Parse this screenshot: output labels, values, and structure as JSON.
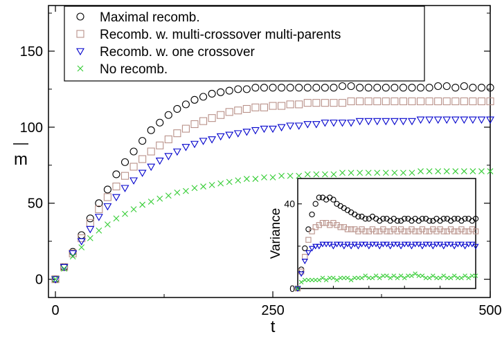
{
  "chart_data": [
    {
      "type": "scatter",
      "xlabel": "t",
      "ylabel": "m",
      "ylabel_overline": true,
      "xlim": [
        -8,
        500
      ],
      "ylim": [
        -12,
        180
      ],
      "x_ticks": [
        0,
        250,
        500
      ],
      "y_ticks": [
        0,
        50,
        100,
        150
      ],
      "grid": false,
      "legend_position": "top-left",
      "series": [
        {
          "name": "Maximal recomb.",
          "marker": "circle",
          "color": "#000000",
          "x": [
            0,
            10,
            20,
            30,
            40,
            50,
            60,
            70,
            80,
            90,
            100,
            110,
            120,
            130,
            140,
            150,
            160,
            170,
            180,
            190,
            200,
            210,
            220,
            230,
            240,
            250,
            260,
            270,
            280,
            290,
            300,
            310,
            320,
            330,
            340,
            350,
            360,
            370,
            380,
            390,
            400,
            410,
            420,
            430,
            440,
            450,
            460,
            470,
            480,
            490,
            500
          ],
          "y": [
            0,
            8,
            18,
            29,
            40,
            50,
            59,
            69,
            77,
            84,
            91,
            98,
            103,
            108,
            112,
            115,
            118,
            120,
            122,
            123,
            124,
            125,
            125,
            126,
            126,
            126,
            126,
            126,
            126,
            126,
            126,
            126,
            126,
            127,
            127,
            126,
            126,
            126,
            126,
            126,
            126,
            126,
            126,
            126,
            127,
            127,
            126,
            127,
            126,
            126,
            126
          ]
        },
        {
          "name": "Recomb. w. multi-crossover multi-parents",
          "marker": "square",
          "color": "#b89088",
          "x": [
            0,
            10,
            20,
            30,
            40,
            50,
            60,
            70,
            80,
            90,
            100,
            110,
            120,
            130,
            140,
            150,
            160,
            170,
            180,
            190,
            200,
            210,
            220,
            230,
            240,
            250,
            260,
            270,
            280,
            290,
            300,
            310,
            320,
            330,
            340,
            350,
            360,
            370,
            380,
            390,
            400,
            410,
            420,
            430,
            440,
            450,
            460,
            470,
            480,
            490,
            500
          ],
          "y": [
            0,
            8,
            17,
            27,
            37,
            46,
            54,
            61,
            68,
            74,
            79,
            84,
            88,
            92,
            96,
            99,
            102,
            104,
            106,
            108,
            110,
            111,
            112,
            113,
            113,
            114,
            114,
            115,
            115,
            116,
            116,
            116,
            116,
            116,
            117,
            117,
            117,
            117,
            117,
            117,
            117,
            117,
            117,
            117,
            117,
            117,
            117,
            117,
            117,
            117,
            117
          ]
        },
        {
          "name": "Recomb. w. one crossover",
          "marker": "triangle-down",
          "color": "#0000cc",
          "x": [
            0,
            10,
            20,
            30,
            40,
            50,
            60,
            70,
            80,
            90,
            100,
            110,
            120,
            130,
            140,
            150,
            160,
            170,
            180,
            190,
            200,
            210,
            220,
            230,
            240,
            250,
            260,
            270,
            280,
            290,
            300,
            310,
            320,
            330,
            340,
            350,
            360,
            370,
            380,
            390,
            400,
            410,
            420,
            430,
            440,
            450,
            460,
            470,
            480,
            490,
            500
          ],
          "y": [
            0,
            8,
            17,
            25,
            33,
            41,
            48,
            54,
            60,
            65,
            70,
            74,
            78,
            81,
            84,
            87,
            89,
            91,
            92,
            94,
            95,
            96,
            97,
            98,
            99,
            99,
            100,
            101,
            101,
            102,
            102,
            103,
            103,
            103,
            103,
            104,
            104,
            104,
            104,
            104,
            104,
            104,
            105,
            105,
            105,
            105,
            105,
            105,
            105,
            105,
            105
          ]
        },
        {
          "name": "No recomb.",
          "marker": "x",
          "color": "#33cc33",
          "x": [
            0,
            10,
            20,
            30,
            40,
            50,
            60,
            70,
            80,
            90,
            100,
            110,
            120,
            130,
            140,
            150,
            160,
            170,
            180,
            190,
            200,
            210,
            220,
            230,
            240,
            250,
            260,
            270,
            280,
            290,
            300,
            310,
            320,
            330,
            340,
            350,
            360,
            370,
            380,
            390,
            400,
            410,
            420,
            430,
            440,
            450,
            460,
            470,
            480,
            490,
            500
          ],
          "y": [
            0,
            7,
            15,
            21,
            27,
            32,
            36,
            40,
            43,
            46,
            49,
            51,
            53,
            55,
            57,
            58,
            60,
            61,
            62,
            63,
            64,
            65,
            66,
            66,
            67,
            67,
            68,
            68,
            68,
            69,
            69,
            69,
            69,
            70,
            70,
            70,
            70,
            70,
            70,
            70,
            70,
            70,
            71,
            71,
            71,
            71,
            71,
            71,
            71,
            71,
            71
          ]
        }
      ]
    },
    {
      "type": "scatter",
      "inset": true,
      "xlabel": "",
      "ylabel": "Variance",
      "xlim": [
        0,
        500
      ],
      "ylim": [
        0,
        52
      ],
      "y_ticks": [
        0,
        40
      ],
      "grid": false,
      "series": [
        {
          "name": "Maximal recomb.",
          "marker": "circle",
          "color": "#000000",
          "x": [
            0,
            10,
            20,
            30,
            40,
            50,
            60,
            70,
            80,
            90,
            100,
            110,
            120,
            130,
            140,
            150,
            160,
            170,
            180,
            190,
            200,
            210,
            220,
            230,
            240,
            250,
            260,
            270,
            280,
            290,
            300,
            310,
            320,
            330,
            340,
            350,
            360,
            370,
            380,
            390,
            400,
            410,
            420,
            430,
            440,
            450,
            460,
            470,
            480,
            490,
            500
          ],
          "y": [
            0,
            9,
            19,
            28,
            35,
            40,
            43,
            43,
            42,
            43,
            42,
            40,
            39,
            38,
            37,
            36,
            35,
            34,
            34,
            33,
            33,
            34,
            33,
            32,
            33,
            33,
            32,
            33,
            32,
            32,
            33,
            33,
            32,
            33,
            32,
            33,
            33,
            32,
            32,
            33,
            32,
            33,
            33,
            32,
            33,
            33,
            32,
            33,
            33,
            32,
            33
          ]
        },
        {
          "name": "Recomb. w. multi-crossover multi-parents",
          "marker": "square",
          "color": "#b89088",
          "x": [
            0,
            10,
            20,
            30,
            40,
            50,
            60,
            70,
            80,
            90,
            100,
            110,
            120,
            130,
            140,
            150,
            160,
            170,
            180,
            190,
            200,
            210,
            220,
            230,
            240,
            250,
            260,
            270,
            280,
            290,
            300,
            310,
            320,
            330,
            340,
            350,
            360,
            370,
            380,
            390,
            400,
            410,
            420,
            430,
            440,
            450,
            460,
            470,
            480,
            490,
            500
          ],
          "y": [
            0,
            8,
            15,
            23,
            27,
            29,
            30,
            31,
            31,
            30,
            31,
            30,
            29,
            29,
            28,
            28,
            28,
            27,
            28,
            27,
            27,
            28,
            27,
            27,
            28,
            27,
            27,
            28,
            27,
            28,
            27,
            27,
            28,
            27,
            27,
            28,
            27,
            27,
            28,
            27,
            28,
            27,
            27,
            28,
            27,
            27,
            28,
            27,
            27,
            28,
            27
          ]
        },
        {
          "name": "Recomb. w. one crossover",
          "marker": "triangle-down",
          "color": "#0000cc",
          "x": [
            0,
            10,
            20,
            30,
            40,
            50,
            60,
            70,
            80,
            90,
            100,
            110,
            120,
            130,
            140,
            150,
            160,
            170,
            180,
            190,
            200,
            210,
            220,
            230,
            240,
            250,
            260,
            270,
            280,
            290,
            300,
            310,
            320,
            330,
            340,
            350,
            360,
            370,
            380,
            390,
            400,
            410,
            420,
            430,
            440,
            450,
            460,
            470,
            480,
            490,
            500
          ],
          "y": [
            0,
            7,
            13,
            17,
            19,
            20,
            20,
            21,
            21,
            21,
            20,
            21,
            21,
            20,
            21,
            20,
            21,
            20,
            21,
            21,
            20,
            21,
            21,
            20,
            21,
            21,
            20,
            21,
            21,
            20,
            21,
            21,
            20,
            21,
            21,
            20,
            21,
            21,
            20,
            21,
            21,
            20,
            21,
            21,
            20,
            21,
            21,
            20,
            21,
            21,
            20
          ]
        },
        {
          "name": "No recomb.",
          "marker": "x",
          "color": "#33cc33",
          "x": [
            0,
            10,
            20,
            30,
            40,
            50,
            60,
            70,
            80,
            90,
            100,
            110,
            120,
            130,
            140,
            150,
            160,
            170,
            180,
            190,
            200,
            210,
            220,
            230,
            240,
            250,
            260,
            270,
            280,
            290,
            300,
            310,
            320,
            330,
            340,
            350,
            360,
            370,
            380,
            390,
            400,
            410,
            420,
            430,
            440,
            450,
            460,
            470,
            480,
            490,
            500
          ],
          "y": [
            0,
            3,
            4,
            4,
            4,
            4,
            4,
            5,
            4,
            5,
            5,
            4,
            5,
            5,
            5,
            4,
            5,
            5,
            5,
            6,
            5,
            5,
            6,
            5,
            6,
            6,
            5,
            6,
            5,
            6,
            5,
            6,
            6,
            7,
            6,
            6,
            5,
            5,
            6,
            5,
            5,
            6,
            5,
            5,
            6,
            5,
            5,
            6,
            5,
            6,
            6
          ]
        }
      ]
    }
  ]
}
